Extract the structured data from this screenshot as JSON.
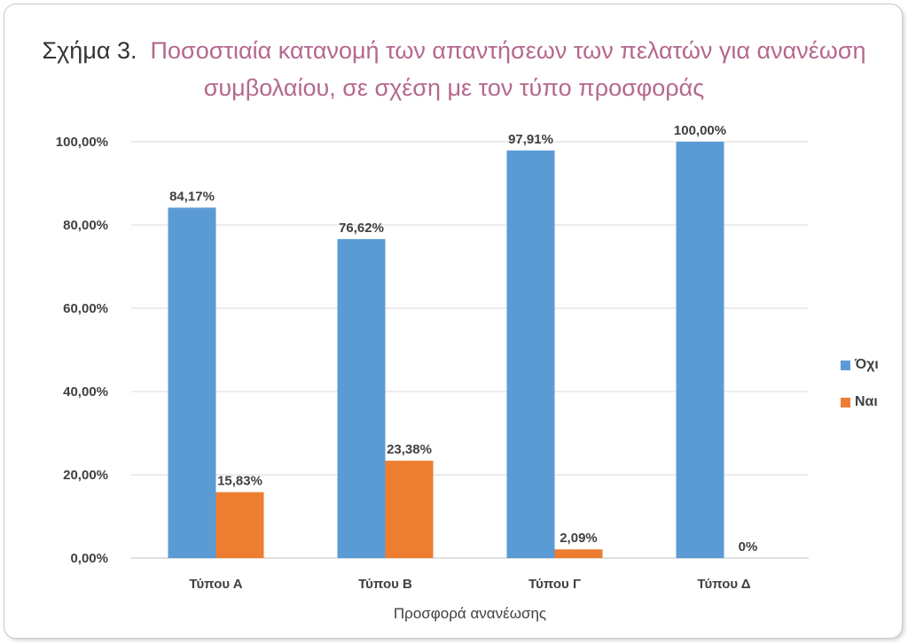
{
  "title": {
    "prefix": "Σχήμα 3.",
    "line1": "Ποσοστιαία κατανομή των απαντήσεων των πελατών για ανανέωση",
    "line2": "συμβολαίου, σε σχέση με τον τύπο προσφοράς"
  },
  "chart_data": {
    "type": "bar",
    "categories": [
      "Τύπου Α",
      "Τύπου Β",
      "Τύπου Γ",
      "Τύπου Δ"
    ],
    "series": [
      {
        "name": "Όχι",
        "values": [
          84.17,
          76.62,
          97.91,
          100.0
        ],
        "labels": [
          "84,17%",
          "76,62%",
          "97,91%",
          "100,00%"
        ],
        "color": "#5b9bd5"
      },
      {
        "name": "Ναι",
        "values": [
          15.83,
          23.38,
          2.09,
          0.0
        ],
        "labels": [
          "15,83%",
          "23,38%",
          "2,09%",
          "0%"
        ],
        "color": "#ed7d31"
      }
    ],
    "y_ticks": [
      "0,00%",
      "20,00%",
      "40,00%",
      "60,00%",
      "80,00%",
      "100,00%"
    ],
    "ylim": [
      0,
      100
    ],
    "xlabel": "Προσφορά ανανέωσης",
    "ylabel": "",
    "grid": true,
    "legend": "right"
  }
}
